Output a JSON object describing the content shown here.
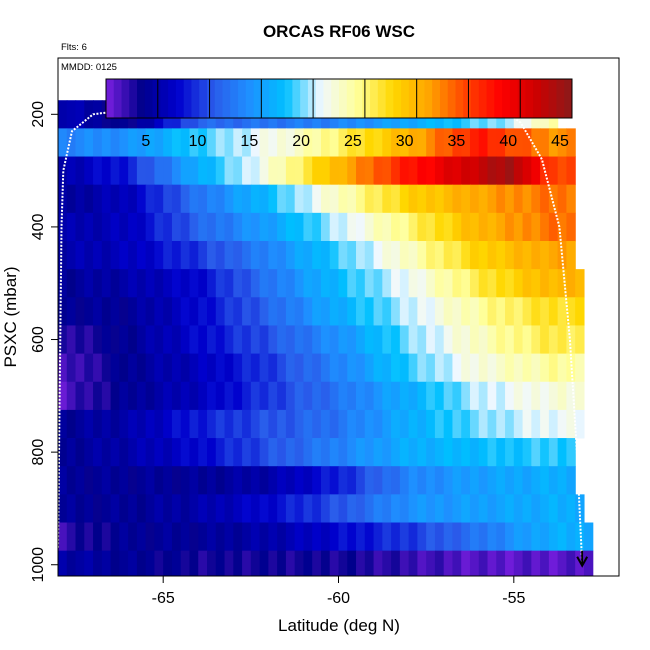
{
  "chart_data": {
    "type": "heatmap",
    "title": "ORCAS RF06 WSC",
    "annotations": [
      "Flts: 6",
      "MMDD: 0125"
    ],
    "xlabel": "Latitude (deg N)",
    "ylabel": "PSXC (mbar)",
    "xlim": [
      -68,
      -52
    ],
    "ylim": [
      1020,
      100
    ],
    "y_reversed": true,
    "x_ticks": [
      "-65",
      "-60",
      "-55"
    ],
    "x_tick_values": [
      -65,
      -60,
      -55
    ],
    "y_ticks": [
      "200",
      "400",
      "600",
      "800",
      "1000"
    ],
    "y_tick_values": [
      200,
      400,
      600,
      800,
      1000
    ],
    "colorbar": {
      "min": 0,
      "max": 45,
      "ticks": [
        "5",
        "10",
        "15",
        "20",
        "25",
        "30",
        "35",
        "40",
        "45"
      ],
      "tick_values": [
        5,
        10,
        15,
        20,
        25,
        30,
        35,
        40,
        45
      ],
      "colors": [
        "#7a1fe0",
        "#00008b",
        "#0000cd",
        "#2a5bea",
        "#1e90ff",
        "#00bfff",
        "#f0f8ff",
        "#ffff99",
        "#ffd700",
        "#ffa500",
        "#ff4500",
        "#ff0000",
        "#cd0000",
        "#8b1a1a"
      ]
    },
    "lat_start": -68,
    "lat_step": 0.25,
    "pressure_levels": [
      {
        "p_top": 175,
        "p_bot": 225,
        "lat_end": -53.75,
        "anchors": [
          [
            -68,
            6
          ],
          [
            -66,
            3
          ],
          [
            -64,
            11
          ],
          [
            -60,
            13
          ],
          [
            -57,
            17
          ],
          [
            -55,
            20
          ],
          [
            -54,
            24
          ]
        ]
      },
      {
        "p_top": 225,
        "p_bot": 275,
        "lat_end": -53.25,
        "anchors": [
          [
            -68,
            13
          ],
          [
            -66,
            14
          ],
          [
            -64,
            18
          ],
          [
            -61,
            23
          ],
          [
            -58,
            30
          ],
          [
            -56,
            37
          ],
          [
            -54,
            32
          ]
        ]
      },
      {
        "p_top": 275,
        "p_bot": 325,
        "lat_end": -53.25,
        "anchors": [
          [
            -68,
            5
          ],
          [
            -66,
            8
          ],
          [
            -64,
            16
          ],
          [
            -62,
            22
          ],
          [
            -60,
            30
          ],
          [
            -58,
            37
          ],
          [
            -56,
            42
          ],
          [
            -55,
            44
          ],
          [
            -54,
            35
          ]
        ]
      },
      {
        "p_top": 325,
        "p_bot": 375,
        "lat_end": -53.25,
        "anchors": [
          [
            -68,
            4
          ],
          [
            -66,
            6
          ],
          [
            -64,
            12
          ],
          [
            -62,
            17
          ],
          [
            -60,
            23
          ],
          [
            -58,
            28
          ],
          [
            -56,
            31
          ],
          [
            -54,
            33
          ]
        ]
      },
      {
        "p_top": 375,
        "p_bot": 425,
        "lat_end": -53.25,
        "anchors": [
          [
            -68,
            5
          ],
          [
            -66,
            6
          ],
          [
            -64,
            11
          ],
          [
            -62,
            15
          ],
          [
            -60,
            20
          ],
          [
            -58,
            25
          ],
          [
            -56,
            30
          ],
          [
            -54,
            33
          ]
        ]
      },
      {
        "p_top": 425,
        "p_bot": 475,
        "lat_end": -53.25,
        "anchors": [
          [
            -68,
            5
          ],
          [
            -66,
            6
          ],
          [
            -64,
            9
          ],
          [
            -62,
            13
          ],
          [
            -60,
            18
          ],
          [
            -58,
            23
          ],
          [
            -56,
            28
          ],
          [
            -54,
            31
          ]
        ]
      },
      {
        "p_top": 475,
        "p_bot": 525,
        "lat_end": -53.0,
        "anchors": [
          [
            -68,
            4
          ],
          [
            -66,
            5
          ],
          [
            -64,
            7
          ],
          [
            -62,
            12
          ],
          [
            -60,
            17
          ],
          [
            -58,
            21
          ],
          [
            -56,
            26
          ],
          [
            -54,
            30
          ]
        ]
      },
      {
        "p_top": 525,
        "p_bot": 575,
        "lat_end": -53.0,
        "anchors": [
          [
            -68,
            4
          ],
          [
            -66,
            4
          ],
          [
            -64,
            7
          ],
          [
            -62,
            11
          ],
          [
            -60,
            16
          ],
          [
            -58,
            20
          ],
          [
            -56,
            24
          ],
          [
            -54,
            27
          ]
        ]
      },
      {
        "p_top": 575,
        "p_bot": 625,
        "lat_end": -53.0,
        "anchors": [
          [
            -68,
            2
          ],
          [
            -66,
            4
          ],
          [
            -64,
            7
          ],
          [
            -62,
            10
          ],
          [
            -60,
            14
          ],
          [
            -58,
            19
          ],
          [
            -56,
            23
          ],
          [
            -54,
            26
          ]
        ]
      },
      {
        "p_top": 625,
        "p_bot": 675,
        "lat_end": -53.0,
        "anchors": [
          [
            -68,
            1
          ],
          [
            -66,
            4
          ],
          [
            -64,
            6
          ],
          [
            -62,
            9
          ],
          [
            -60,
            13
          ],
          [
            -58,
            18
          ],
          [
            -56,
            22
          ],
          [
            -54,
            24
          ]
        ]
      },
      {
        "p_top": 675,
        "p_bot": 725,
        "lat_end": -53.0,
        "anchors": [
          [
            -68,
            1
          ],
          [
            -66,
            4
          ],
          [
            -64,
            6
          ],
          [
            -62,
            9
          ],
          [
            -60,
            12
          ],
          [
            -58,
            16
          ],
          [
            -56,
            20
          ],
          [
            -54,
            22
          ]
        ]
      },
      {
        "p_top": 725,
        "p_bot": 775,
        "lat_end": -53.0,
        "anchors": [
          [
            -68,
            4
          ],
          [
            -66,
            5
          ],
          [
            -64,
            8
          ],
          [
            -62,
            10
          ],
          [
            -60,
            12
          ],
          [
            -58,
            16
          ],
          [
            -56,
            19
          ],
          [
            -54,
            21
          ]
        ]
      },
      {
        "p_top": 775,
        "p_bot": 825,
        "lat_end": -53.25,
        "anchors": [
          [
            -68,
            4
          ],
          [
            -66,
            5
          ],
          [
            -64,
            7
          ],
          [
            -62,
            10
          ],
          [
            -60,
            13
          ],
          [
            -58,
            16
          ],
          [
            -56,
            17
          ],
          [
            -54,
            18
          ]
        ]
      },
      {
        "p_top": 825,
        "p_bot": 875,
        "lat_end": -53.25,
        "anchors": [
          [
            -68,
            4
          ],
          [
            -66,
            4
          ],
          [
            -64,
            4
          ],
          [
            -62,
            5
          ],
          [
            -60,
            8
          ],
          [
            -58,
            13
          ],
          [
            -56,
            15
          ],
          [
            -54,
            16
          ]
        ]
      },
      {
        "p_top": 875,
        "p_bot": 925,
        "lat_end": -53.0,
        "anchors": [
          [
            -68,
            4
          ],
          [
            -66,
            4
          ],
          [
            -64,
            5
          ],
          [
            -62,
            7
          ],
          [
            -60,
            10
          ],
          [
            -58,
            14
          ],
          [
            -56,
            15
          ],
          [
            -54,
            16
          ]
        ]
      },
      {
        "p_top": 925,
        "p_bot": 975,
        "lat_end": -52.75,
        "anchors": [
          [
            -68,
            2
          ],
          [
            -66,
            4
          ],
          [
            -64,
            4
          ],
          [
            -62,
            5
          ],
          [
            -60,
            7
          ],
          [
            -58,
            9
          ],
          [
            -56,
            12
          ],
          [
            -54,
            16
          ]
        ]
      },
      {
        "p_top": 975,
        "p_bot": 1025,
        "lat_end": -52.75,
        "anchors": [
          [
            -68,
            5
          ],
          [
            -66,
            4
          ],
          [
            -64,
            3
          ],
          [
            -62,
            3
          ],
          [
            -60,
            3
          ],
          [
            -58,
            2
          ],
          [
            -56,
            1
          ],
          [
            -54,
            1
          ]
        ]
      }
    ],
    "flight_track": [
      {
        "lat": -68.0,
        "p": 970
      },
      {
        "lat": -67.9,
        "p": 400
      },
      {
        "lat": -67.85,
        "p": 300
      },
      {
        "lat": -67.6,
        "p": 230
      },
      {
        "lat": -67.0,
        "p": 200
      },
      {
        "lat": -66.0,
        "p": 192
      },
      {
        "lat": -65.0,
        "p": 190
      },
      {
        "lat": -60.0,
        "p": 190
      },
      {
        "lat": -56.0,
        "p": 190
      },
      {
        "lat": -55.3,
        "p": 192
      },
      {
        "lat": -54.8,
        "p": 215
      },
      {
        "lat": -54.2,
        "p": 280
      },
      {
        "lat": -53.7,
        "p": 400
      },
      {
        "lat": -53.4,
        "p": 600
      },
      {
        "lat": -53.2,
        "p": 800
      },
      {
        "lat": -53.05,
        "p": 1000
      }
    ]
  }
}
